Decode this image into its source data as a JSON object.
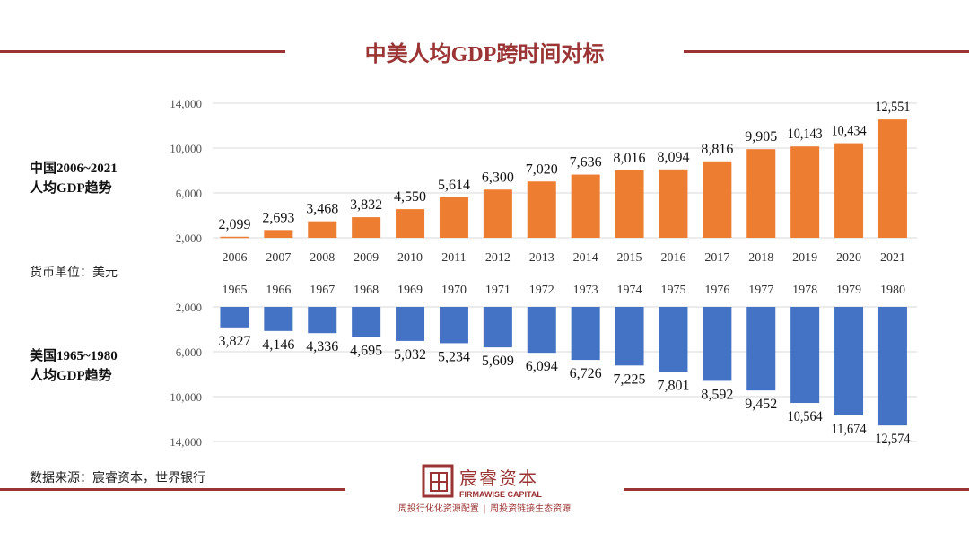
{
  "title": "中美人均GDP跨时间对标",
  "left_labels": {
    "china_line1": "中国2006~2021",
    "china_line2": "人均GDP趋势",
    "unit": "货币单位：美元",
    "us_line1": "美国1965~1980",
    "us_line2": "人均GDP趋势"
  },
  "source": "数据来源：宸睿资本，世界银行",
  "brand": {
    "name": "宸睿资本",
    "english": "FIRMAWISE CAPITAL",
    "slogan_left": "周投行化化资源配置",
    "slogan_sep": "|",
    "slogan_right": "周投资链接生态资源"
  },
  "colors": {
    "accent": "#9b3434",
    "china": "#ed7d31",
    "us": "#4472c4"
  },
  "chart_data": [
    {
      "type": "bar",
      "series_name": "China",
      "categories": [
        "2006",
        "2007",
        "2008",
        "2009",
        "2010",
        "2011",
        "2012",
        "2013",
        "2014",
        "2015",
        "2016",
        "2017",
        "2018",
        "2019",
        "2020",
        "2021"
      ],
      "values": [
        2099,
        2693,
        3468,
        3832,
        4550,
        5614,
        6300,
        7020,
        7636,
        8016,
        8094,
        8816,
        9905,
        10143,
        10434,
        12551
      ],
      "labels": [
        "2,099",
        "2,693",
        "3,468",
        "3,832",
        "4,550",
        "5,614",
        "6,300",
        "7,020",
        "7,636",
        "8,016",
        "8,094",
        "8,816",
        "9,905",
        "10,143",
        "10,434",
        "12,551"
      ],
      "yticks": [
        "2,000",
        "6,000",
        "10,000",
        "14,000"
      ],
      "ytick_values": [
        2000,
        6000,
        10000,
        14000
      ],
      "ylim": [
        2000,
        14000
      ],
      "grid": true
    },
    {
      "type": "bar",
      "series_name": "US",
      "reversed_axis": true,
      "categories": [
        "1965",
        "1966",
        "1967",
        "1968",
        "1969",
        "1970",
        "1971",
        "1972",
        "1973",
        "1974",
        "1975",
        "1976",
        "1977",
        "1978",
        "1979",
        "1980"
      ],
      "values": [
        3827,
        4146,
        4336,
        4695,
        5032,
        5234,
        5609,
        6094,
        6726,
        7225,
        7801,
        8592,
        9452,
        10564,
        11674,
        12574
      ],
      "labels": [
        "3,827",
        "4,146",
        "4,336",
        "4,695",
        "5,032",
        "5,234",
        "5,609",
        "6,094",
        "6,726",
        "7,225",
        "7,801",
        "8,592",
        "9,452",
        "10,564",
        "11,674",
        "12,574"
      ],
      "yticks": [
        "2,000",
        "6,000",
        "10,000",
        "14,000"
      ],
      "ytick_values": [
        2000,
        6000,
        10000,
        14000
      ],
      "ylim": [
        2000,
        14000
      ],
      "grid": true
    }
  ]
}
